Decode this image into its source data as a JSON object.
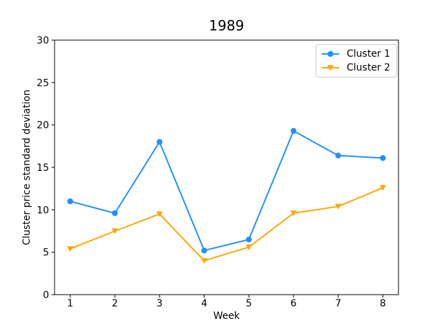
{
  "chart_data": {
    "type": "line",
    "title": "1989",
    "xlabel": "Week",
    "ylabel": "Cluster price standard deviation",
    "x": [
      1,
      2,
      3,
      4,
      5,
      6,
      7,
      8
    ],
    "series": [
      {
        "name": "Cluster 1",
        "color": "#1e90ff",
        "marker": "circle",
        "values": [
          11.0,
          9.6,
          18.0,
          5.2,
          6.5,
          19.3,
          16.4,
          16.1
        ]
      },
      {
        "name": "Cluster 2",
        "color": "#ffa500",
        "marker": "triangle-down",
        "values": [
          5.4,
          7.5,
          9.5,
          4.0,
          5.6,
          9.6,
          10.4,
          12.6
        ]
      }
    ],
    "xlim": [
      0.65,
      8.35
    ],
    "ylim": [
      0,
      30
    ],
    "xticks": [
      1,
      2,
      3,
      4,
      5,
      6,
      7,
      8
    ],
    "yticks": [
      0,
      5,
      10,
      15,
      20,
      25,
      30
    ],
    "grid": false,
    "legend_position": "upper right",
    "axis_color": "#000000",
    "background_color": "#ffffff"
  }
}
